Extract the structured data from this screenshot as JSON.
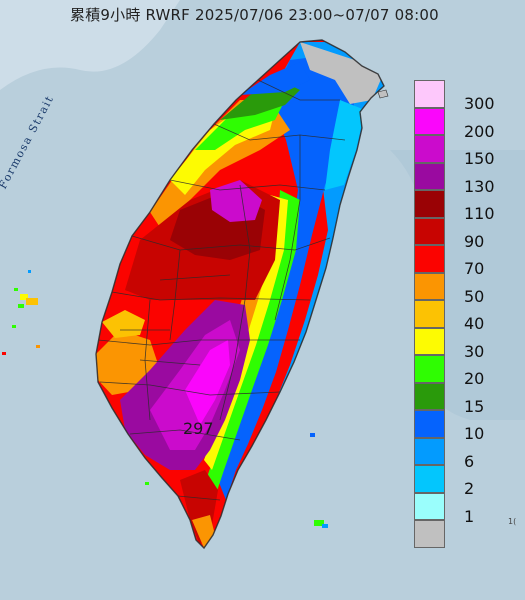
{
  "title": "累積9小時 RWRF 2025/07/06 23:00~07/07 08:00",
  "map": {
    "strait_label": "Formosa Strait",
    "max_value_label": "297",
    "edge_label": "1("
  },
  "legend": [
    {
      "label": "300",
      "color": "#fdc8fb"
    },
    {
      "label": "200",
      "color": "#fa06fb"
    },
    {
      "label": "150",
      "color": "#cb0bcc"
    },
    {
      "label": "130",
      "color": "#9a0aa0"
    },
    {
      "label": "110",
      "color": "#9a0205"
    },
    {
      "label": "90",
      "color": "#c80401"
    },
    {
      "label": "70",
      "color": "#fb0300"
    },
    {
      "label": "50",
      "color": "#fb9502"
    },
    {
      "label": "40",
      "color": "#fcc203"
    },
    {
      "label": "30",
      "color": "#fdfb02"
    },
    {
      "label": "20",
      "color": "#2ffd02"
    },
    {
      "label": "15",
      "color": "#2a9a0b"
    },
    {
      "label": "10",
      "color": "#0563fd"
    },
    {
      "label": "6",
      "color": "#039bfe"
    },
    {
      "label": "2",
      "color": "#03c6fd"
    },
    {
      "label": "1",
      "color": "#9afefc"
    },
    {
      "label": "",
      "color": "#c0c0c0"
    }
  ],
  "colors": {
    "sea": "#b9cfdc",
    "land_light": "#c7c7c7",
    "county_border": "#2b2b2b"
  }
}
